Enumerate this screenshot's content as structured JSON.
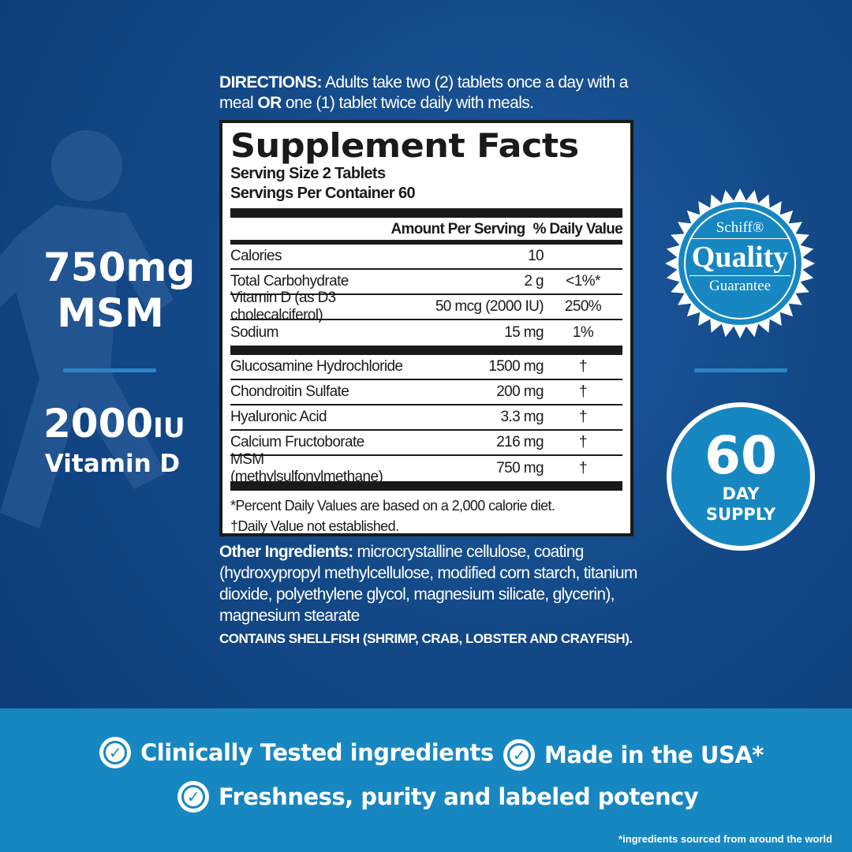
{
  "left": {
    "msm_amount": "750mg",
    "msm_label": "MSM",
    "vitd_amount": "2000",
    "vitd_unit": "IU",
    "vitd_label": "Vitamin D"
  },
  "directions": {
    "label": "DIRECTIONS:",
    "text1": " Adults take two (2) tablets once a day with a meal ",
    "or": "OR",
    "text2": " one (1) tablet twice daily with meals."
  },
  "facts": {
    "title": "Supplement Facts",
    "serving_size": "Serving Size 2 Tablets",
    "servings_per": "Servings Per Container 60",
    "col_amount": "Amount Per Serving",
    "col_dv": "% Daily Value",
    "rows_a": [
      {
        "name": "Calories",
        "amount": "10",
        "dv": ""
      },
      {
        "name": "Total Carbohydrate",
        "amount": "2 g",
        "dv": "<1%*"
      },
      {
        "name": "Vitamin D (as D3 cholecalciferol)",
        "amount": "50 mcg (2000 IU)",
        "dv": "250%"
      },
      {
        "name": "Sodium",
        "amount": "15 mg",
        "dv": "1%"
      }
    ],
    "rows_b": [
      {
        "name": "Glucosamine Hydrochloride",
        "amount": "1500 mg",
        "dv": "†"
      },
      {
        "name": "Chondroitin Sulfate",
        "amount": "200 mg",
        "dv": "†"
      },
      {
        "name": "Hyaluronic Acid",
        "amount": "3.3 mg",
        "dv": "†"
      },
      {
        "name": "Calcium Fructoborate",
        "amount": "216 mg",
        "dv": "†"
      },
      {
        "name": "MSM (methylsulfonylmethane)",
        "amount": "750 mg",
        "dv": "†"
      }
    ],
    "footnote1": "*Percent Daily Values are based on a 2,000 calorie diet.",
    "footnote2": "†Daily Value not established."
  },
  "other": {
    "label": "Other Ingredients:",
    "text": " microcrystalline cellulose, coating (hydroxypropyl methylcellulose, modified corn starch, titanium dioxide, polyethylene glycol, magnesium silicate, glycerin), magnesium stearate"
  },
  "contains": "CONTAINS SHELLFISH (SHRIMP, CRAB, LOBSTER AND CRAYFISH).",
  "seal": {
    "brand": "Schiff®",
    "word": "Quality",
    "sub": "Guarantee"
  },
  "supply": {
    "num": "60",
    "l1": "DAY",
    "l2": "SUPPLY"
  },
  "features": [
    "Clinically Tested ingredients",
    "Made in the USA*",
    "Freshness, purity and labeled potency"
  ],
  "footnote": "*ingredients sourced from around the world",
  "colors": {
    "background": "#134886",
    "band": "#1787c2",
    "accent": "#2a86c7"
  }
}
